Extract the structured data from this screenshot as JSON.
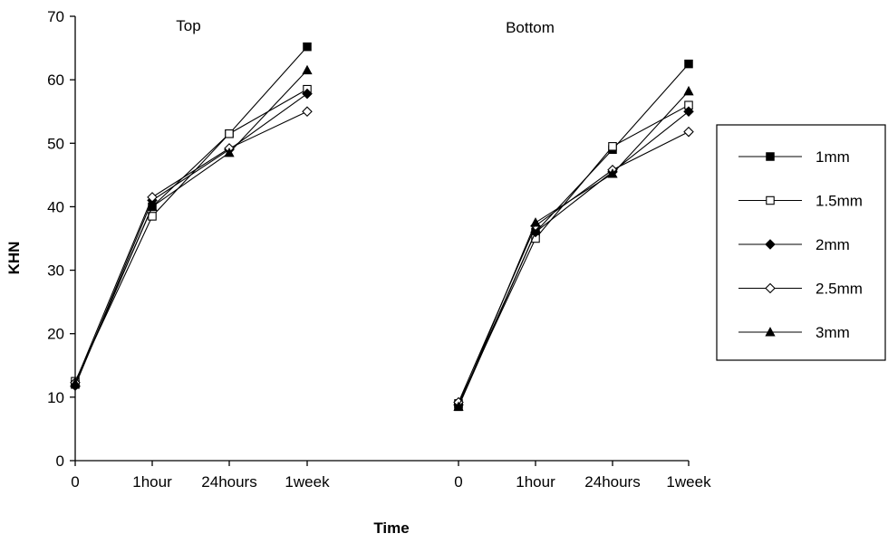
{
  "chart_data": {
    "type": "line",
    "ylabel": "KHN",
    "xlabel": "Time",
    "ylim": [
      0,
      70
    ],
    "yticks": [
      "0",
      "10",
      "20",
      "30",
      "40",
      "50",
      "60",
      "70"
    ],
    "grid": false,
    "legend_position": "right",
    "categories": [
      "0",
      "1hour",
      "24hours",
      "1week"
    ],
    "panels": [
      {
        "label": "Top",
        "series": [
          {
            "name": "1mm",
            "values": [
              12.0,
              40.0,
              51.5,
              65.2
            ]
          },
          {
            "name": "1.5mm",
            "values": [
              12.5,
              38.5,
              51.5,
              58.5
            ]
          },
          {
            "name": "2mm",
            "values": [
              11.8,
              41.0,
              49.0,
              57.8
            ]
          },
          {
            "name": "2.5mm",
            "values": [
              12.3,
              41.5,
              49.2,
              55.0
            ]
          },
          {
            "name": "3mm",
            "values": [
              12.2,
              40.0,
              48.5,
              61.5
            ]
          }
        ]
      },
      {
        "label": "Bottom",
        "series": [
          {
            "name": "1mm",
            "values": [
              8.5,
              36.0,
              49.0,
              62.5
            ]
          },
          {
            "name": "1.5mm",
            "values": [
              9.0,
              35.0,
              49.5,
              56.0
            ]
          },
          {
            "name": "2mm",
            "values": [
              8.8,
              36.0,
              45.5,
              55.0
            ]
          },
          {
            "name": "2.5mm",
            "values": [
              9.2,
              37.0,
              45.8,
              51.8
            ]
          },
          {
            "name": "3mm",
            "values": [
              8.5,
              37.5,
              45.2,
              58.2
            ]
          }
        ]
      }
    ],
    "legend": [
      {
        "name": "1mm",
        "marker": "filled-square"
      },
      {
        "name": "1.5mm",
        "marker": "open-square"
      },
      {
        "name": "2mm",
        "marker": "filled-diamond"
      },
      {
        "name": "2.5mm",
        "marker": "open-diamond"
      },
      {
        "name": "3mm",
        "marker": "filled-triangle"
      }
    ]
  }
}
